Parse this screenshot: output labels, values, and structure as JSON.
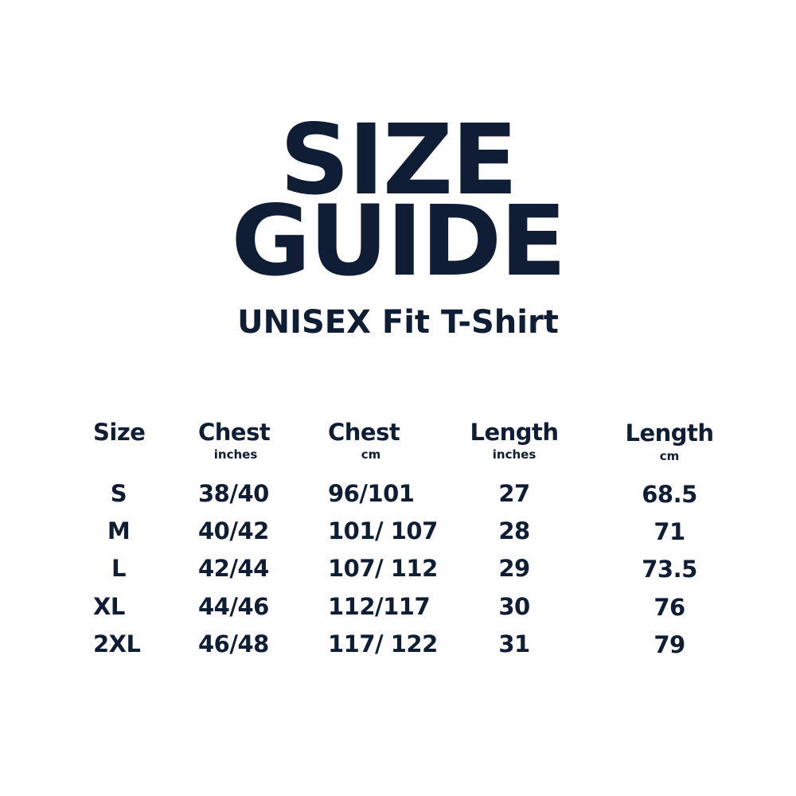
{
  "title_line1": "SIZE",
  "title_line2": "GUIDE",
  "subtitle": "UNISEX Fit T-Shirt",
  "table": {
    "columns": [
      {
        "label": "Size",
        "unit": ""
      },
      {
        "label": "Chest",
        "unit": "inches"
      },
      {
        "label": "Chest",
        "unit": "cm"
      },
      {
        "label": "Length",
        "unit": "inches"
      },
      {
        "label": "Length",
        "unit": "cm"
      }
    ],
    "rows": [
      [
        "S",
        "38/40",
        "96/101",
        "27",
        "68.5"
      ],
      [
        "M",
        "40/42",
        "101/ 107",
        "28",
        "71"
      ],
      [
        "L",
        "42/44",
        "107/ 112",
        "29",
        "73.5"
      ],
      [
        "XL",
        "44/46",
        "112/117",
        "30",
        "76"
      ],
      [
        "2XL",
        "46/48",
        "117/ 122",
        "31",
        "79"
      ]
    ]
  },
  "text_color": "#0f1d35"
}
